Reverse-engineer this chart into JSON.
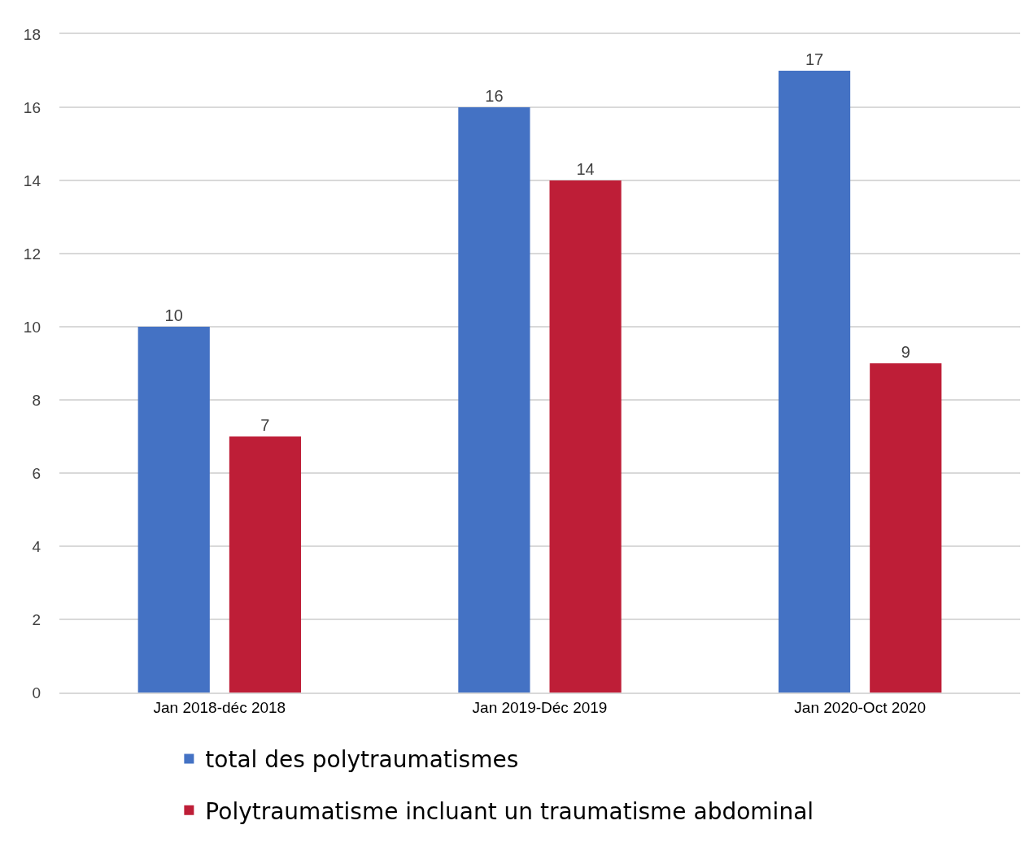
{
  "chart_data": {
    "type": "bar",
    "categories": [
      "Jan 2018-déc 2018",
      "Jan 2019-Déc 2019",
      "Jan 2020-Oct 2020"
    ],
    "series": [
      {
        "name": "total des polytraumatismes",
        "color": "#4472c4",
        "values": [
          10,
          16,
          17
        ]
      },
      {
        "name": "Polytraumatisme incluant un traumatisme abdominal",
        "color": "#be1e37",
        "values": [
          7,
          14,
          9
        ]
      }
    ],
    "ylim": [
      0,
      18
    ],
    "yticks": [
      0,
      2,
      4,
      6,
      8,
      10,
      12,
      14,
      16,
      18
    ],
    "grid": "y",
    "legend": "bottom",
    "data_labels": true
  }
}
